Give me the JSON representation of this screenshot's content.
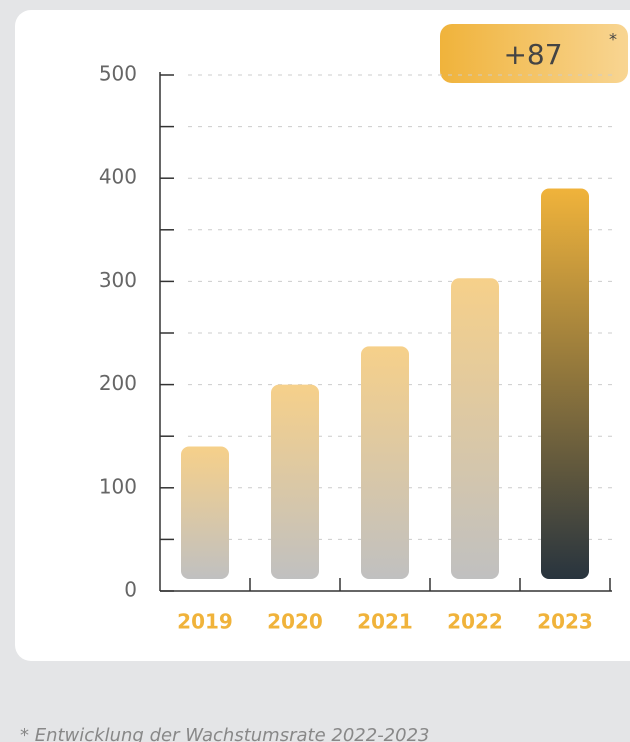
{
  "chart_data": {
    "type": "bar",
    "categories": [
      "2019",
      "2020",
      "2021",
      "2022",
      "2023"
    ],
    "values": [
      140,
      200,
      237,
      303,
      390
    ],
    "colors": [
      [
        "#f6d08a",
        "#c0c0c0"
      ],
      [
        "#f6d08a",
        "#c0c0c0"
      ],
      [
        "#f6d08a",
        "#c0c0c0"
      ],
      [
        "#f6d08a",
        "#c0c0c0"
      ],
      [
        "#f0b33b",
        "#28343e"
      ]
    ],
    "ylim": [
      0,
      500
    ],
    "yticks": [
      0,
      100,
      200,
      300,
      400,
      500
    ],
    "minor_yticks": [
      50,
      150,
      250,
      350,
      450
    ],
    "grid": true,
    "badge": {
      "text": "+87",
      "mark": "*"
    },
    "footnote": "* Entwicklung der Wachstumsrate 2022-2023"
  }
}
